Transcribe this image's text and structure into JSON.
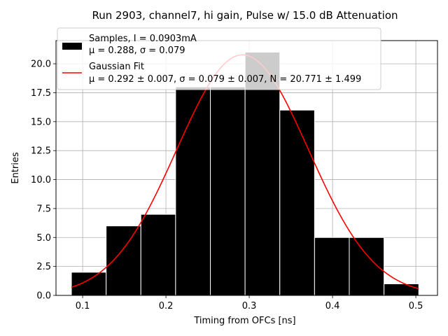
{
  "chart_data": {
    "type": "bar",
    "title": "Run 2903, channel7, hi gain, Pulse w/ 15.0 dB Attenuation",
    "xlabel": "Timing from OFCs [ns]",
    "ylabel": "Entries",
    "xlim": [
      0.068,
      0.526
    ],
    "ylim": [
      0,
      22.0
    ],
    "grid": true,
    "x_ticks": [
      "0.1",
      "0.2",
      "0.3",
      "0.4",
      "0.5"
    ],
    "y_ticks": [
      "0.0",
      "2.5",
      "5.0",
      "7.5",
      "10.0",
      "12.5",
      "15.0",
      "17.5",
      "20.0"
    ],
    "histogram": {
      "bin_edges": [
        0.0865,
        0.1282,
        0.1699,
        0.2116,
        0.2533,
        0.295,
        0.3367,
        0.3784,
        0.4201,
        0.4618,
        0.5035
      ],
      "counts": [
        2,
        6,
        7,
        18,
        18,
        21,
        16,
        5,
        5,
        1
      ],
      "fill_color": "#000000",
      "edge_color": "#ffffff"
    },
    "gaussian_fit": {
      "mu": 0.292,
      "sigma": 0.079,
      "N": 20.771,
      "color": "#ff0000"
    },
    "legend": {
      "position": "upper-left",
      "entries": [
        {
          "line1": "Samples, I = 0.0903mA",
          "line2": "μ = 0.288, σ = 0.079",
          "marker": "patch",
          "color": "#000000"
        },
        {
          "line1": "Gaussian Fit",
          "line2": "μ = 0.292 ± 0.007, σ = 0.079 ± 0.007, N = 20.771 ± 1.499",
          "marker": "line",
          "color": "#ff0000"
        }
      ]
    }
  }
}
